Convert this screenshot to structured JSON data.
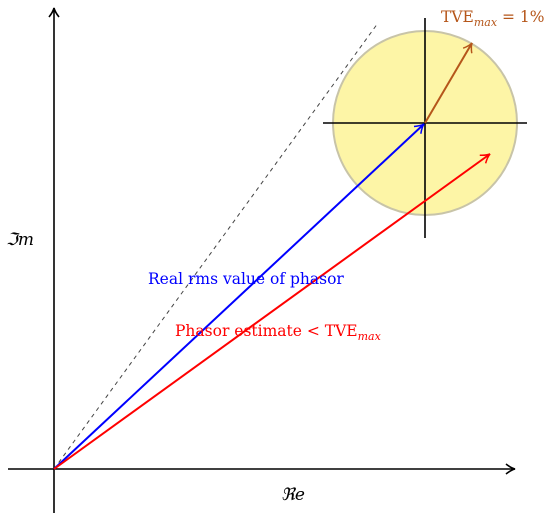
{
  "axes": {
    "real_label": "ℜe",
    "imag_label": "ℑm"
  },
  "labels": {
    "real_phasor": "Real rms value of phasor",
    "estimate_prefix": "Phasor estimate < TVE",
    "estimate_sub": "max",
    "tve_prefix": "TVE",
    "tve_sub": "max",
    "tve_suffix": " = 1%"
  },
  "colors": {
    "real_phasor": "#0000ff",
    "estimate": "#ff0000",
    "tve_vector": "#b5561a",
    "circle_fill": "#fdf5a6",
    "circle_stroke": "#c8c4a8",
    "axes": "#000000",
    "dashed_line": "#444444"
  }
}
